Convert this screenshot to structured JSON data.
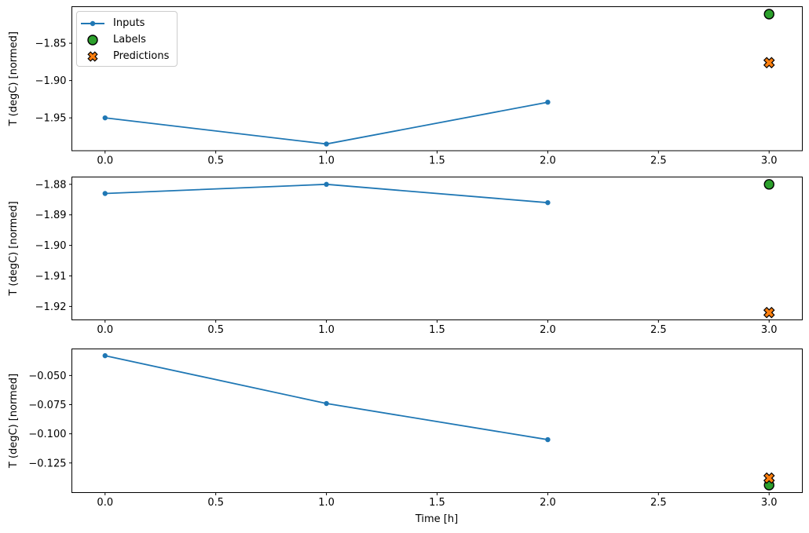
{
  "figure": {
    "xlabel": "Time [h]",
    "background": "#ffffff",
    "text_color": "#000000"
  },
  "legend": {
    "position": "upper-left",
    "items": [
      {
        "label": "Inputs",
        "marker": "line-dot",
        "color": "#1f77b4",
        "edge_color": "#1f77b4"
      },
      {
        "label": "Labels",
        "marker": "filled-circle",
        "color": "#2ca02c",
        "edge_color": "#000000"
      },
      {
        "label": "Predictions",
        "marker": "filled-x",
        "color": "#ff7f0e",
        "edge_color": "#000000"
      }
    ]
  },
  "chart_data": [
    {
      "type": "line",
      "title": "",
      "xlabel": "",
      "ylabel": "T (degC) [normed]",
      "xlim": [
        -0.15,
        3.15
      ],
      "ylim": [
        -1.994,
        -1.801
      ],
      "xticks": [
        0,
        0.5,
        1,
        1.5,
        2,
        2.5,
        3
      ],
      "xtick_decimals": 1,
      "yticks": [
        -1.85,
        -1.9,
        -1.95
      ],
      "ytick_decimals": 2,
      "grid": false,
      "series": [
        {
          "name": "Inputs",
          "type": "line",
          "marker": "dot",
          "color": "#1f77b4",
          "x": [
            0,
            1,
            2
          ],
          "y": [
            -1.95,
            -1.985,
            -1.929
          ]
        },
        {
          "name": "Labels",
          "type": "scatter",
          "marker": "circle",
          "color": "#2ca02c",
          "edge_color": "#000000",
          "x": [
            3
          ],
          "y": [
            -1.811
          ]
        },
        {
          "name": "Predictions",
          "type": "scatter",
          "marker": "X",
          "color": "#ff7f0e",
          "edge_color": "#000000",
          "x": [
            3
          ],
          "y": [
            -1.876
          ]
        }
      ]
    },
    {
      "type": "line",
      "title": "",
      "xlabel": "",
      "ylabel": "T (degC) [normed]",
      "xlim": [
        -0.15,
        3.15
      ],
      "ylim": [
        -1.9244,
        -1.8776
      ],
      "xticks": [
        0,
        0.5,
        1,
        1.5,
        2,
        2.5,
        3
      ],
      "xtick_decimals": 1,
      "yticks": [
        -1.88,
        -1.89,
        -1.9,
        -1.91,
        -1.92
      ],
      "ytick_decimals": 2,
      "grid": false,
      "series": [
        {
          "name": "Inputs",
          "type": "line",
          "marker": "dot",
          "color": "#1f77b4",
          "x": [
            0,
            1,
            2
          ],
          "y": [
            -1.883,
            -1.88,
            -1.886
          ]
        },
        {
          "name": "Labels",
          "type": "scatter",
          "marker": "circle",
          "color": "#2ca02c",
          "edge_color": "#000000",
          "x": [
            3
          ],
          "y": [
            -1.88
          ]
        },
        {
          "name": "Predictions",
          "type": "scatter",
          "marker": "X",
          "color": "#ff7f0e",
          "edge_color": "#000000",
          "x": [
            3
          ],
          "y": [
            -1.922
          ]
        }
      ]
    },
    {
      "type": "line",
      "title": "",
      "xlabel": "Time [h]",
      "ylabel": "T (degC) [normed]",
      "xlim": [
        -0.15,
        3.15
      ],
      "ylim": [
        -0.1504,
        -0.0272
      ],
      "xticks": [
        0,
        0.5,
        1,
        1.5,
        2,
        2.5,
        3
      ],
      "xtick_decimals": 1,
      "yticks": [
        -0.05,
        -0.075,
        -0.1,
        -0.125
      ],
      "ytick_decimals": 3,
      "grid": false,
      "series": [
        {
          "name": "Inputs",
          "type": "line",
          "marker": "dot",
          "color": "#1f77b4",
          "x": [
            0,
            1,
            2
          ],
          "y": [
            -0.033,
            -0.074,
            -0.105
          ]
        },
        {
          "name": "Labels",
          "type": "scatter",
          "marker": "circle",
          "color": "#2ca02c",
          "edge_color": "#000000",
          "x": [
            3
          ],
          "y": [
            -0.144
          ]
        },
        {
          "name": "Predictions",
          "type": "scatter",
          "marker": "X",
          "color": "#ff7f0e",
          "edge_color": "#000000",
          "x": [
            3
          ],
          "y": [
            -0.138
          ]
        }
      ]
    }
  ]
}
